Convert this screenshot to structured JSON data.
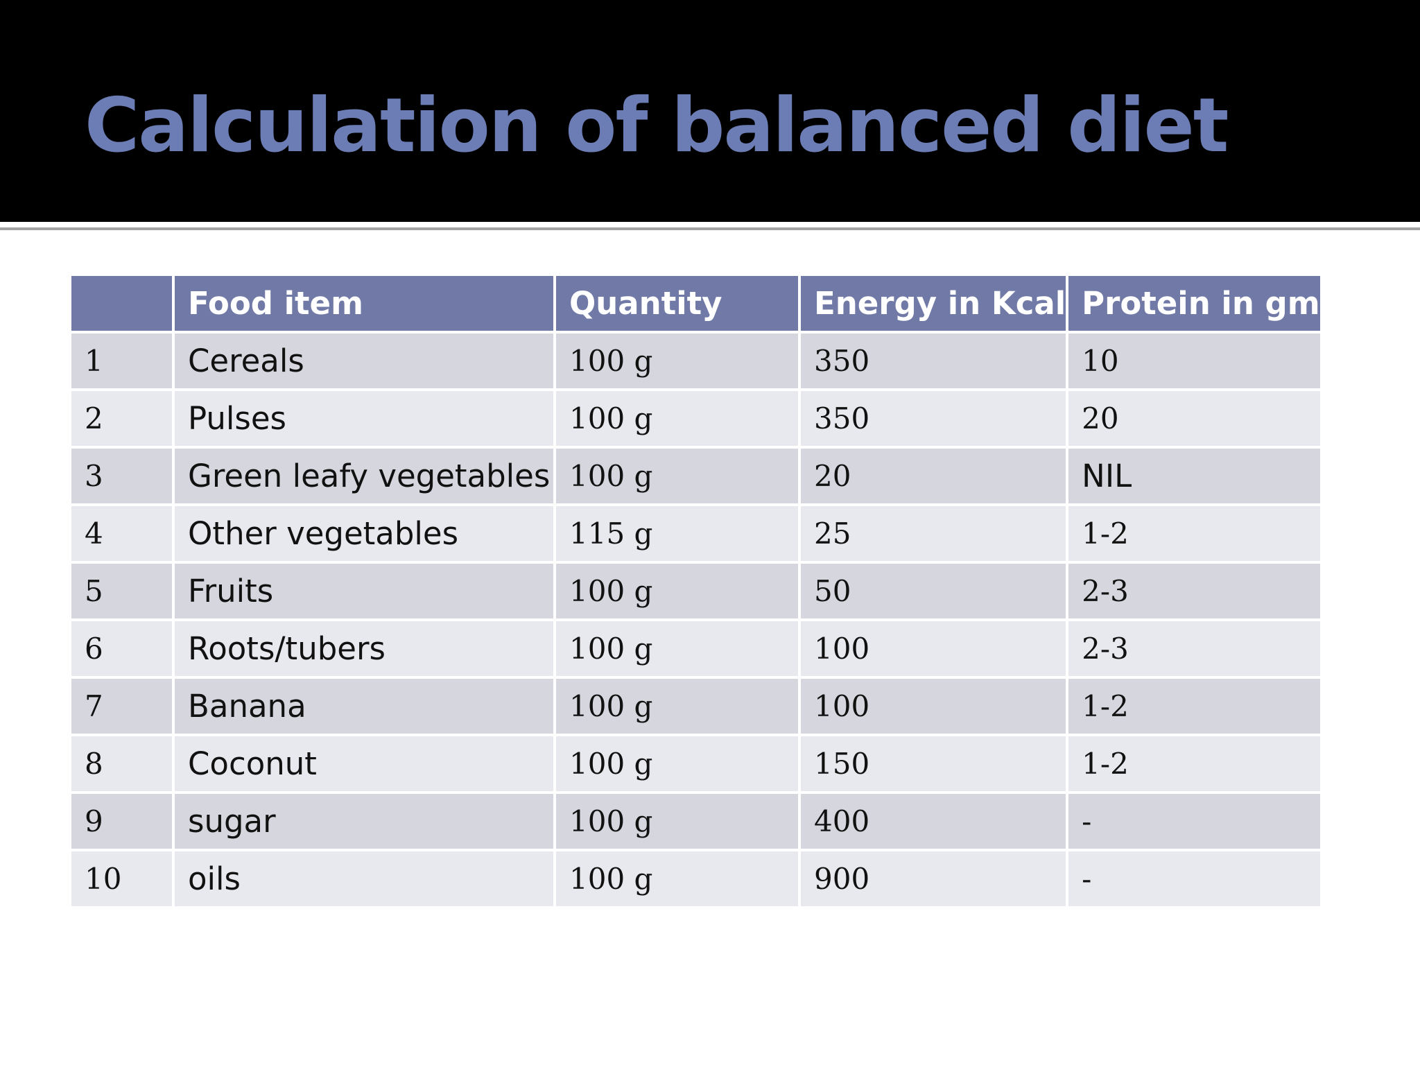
{
  "slide": {
    "title": "Calculation of balanced diet"
  },
  "table": {
    "headers": [
      "",
      "Food item",
      "Quantity",
      "Energy in Kcal",
      "Protein in gm"
    ],
    "rows": [
      [
        "1",
        "Cereals",
        "100 g",
        "350",
        "10"
      ],
      [
        "2",
        "Pulses",
        "100 g",
        "350",
        "20"
      ],
      [
        "3",
        "Green leafy vegetables",
        "100 g",
        "20",
        "NIL"
      ],
      [
        "4",
        "Other vegetables",
        "115 g",
        "25",
        "1-2"
      ],
      [
        "5",
        "Fruits",
        "100 g",
        "50",
        "2-3"
      ],
      [
        "6",
        "Roots/tubers",
        "100 g",
        "100",
        "2-3"
      ],
      [
        "7",
        "Banana",
        "100 g",
        "100",
        "1-2"
      ],
      [
        "8",
        "Coconut",
        "100 g",
        "150",
        "1-2"
      ],
      [
        "9",
        "sugar",
        "100 g",
        "400",
        "-"
      ],
      [
        "10",
        "oils",
        "100 g",
        "900",
        "-"
      ]
    ]
  },
  "colors": {
    "title_bar": "#000000",
    "title_text": "#6c7db5",
    "header_fill": "#717aa6",
    "row_odd": "#d6d7de",
    "row_even": "#e8e9ee"
  }
}
